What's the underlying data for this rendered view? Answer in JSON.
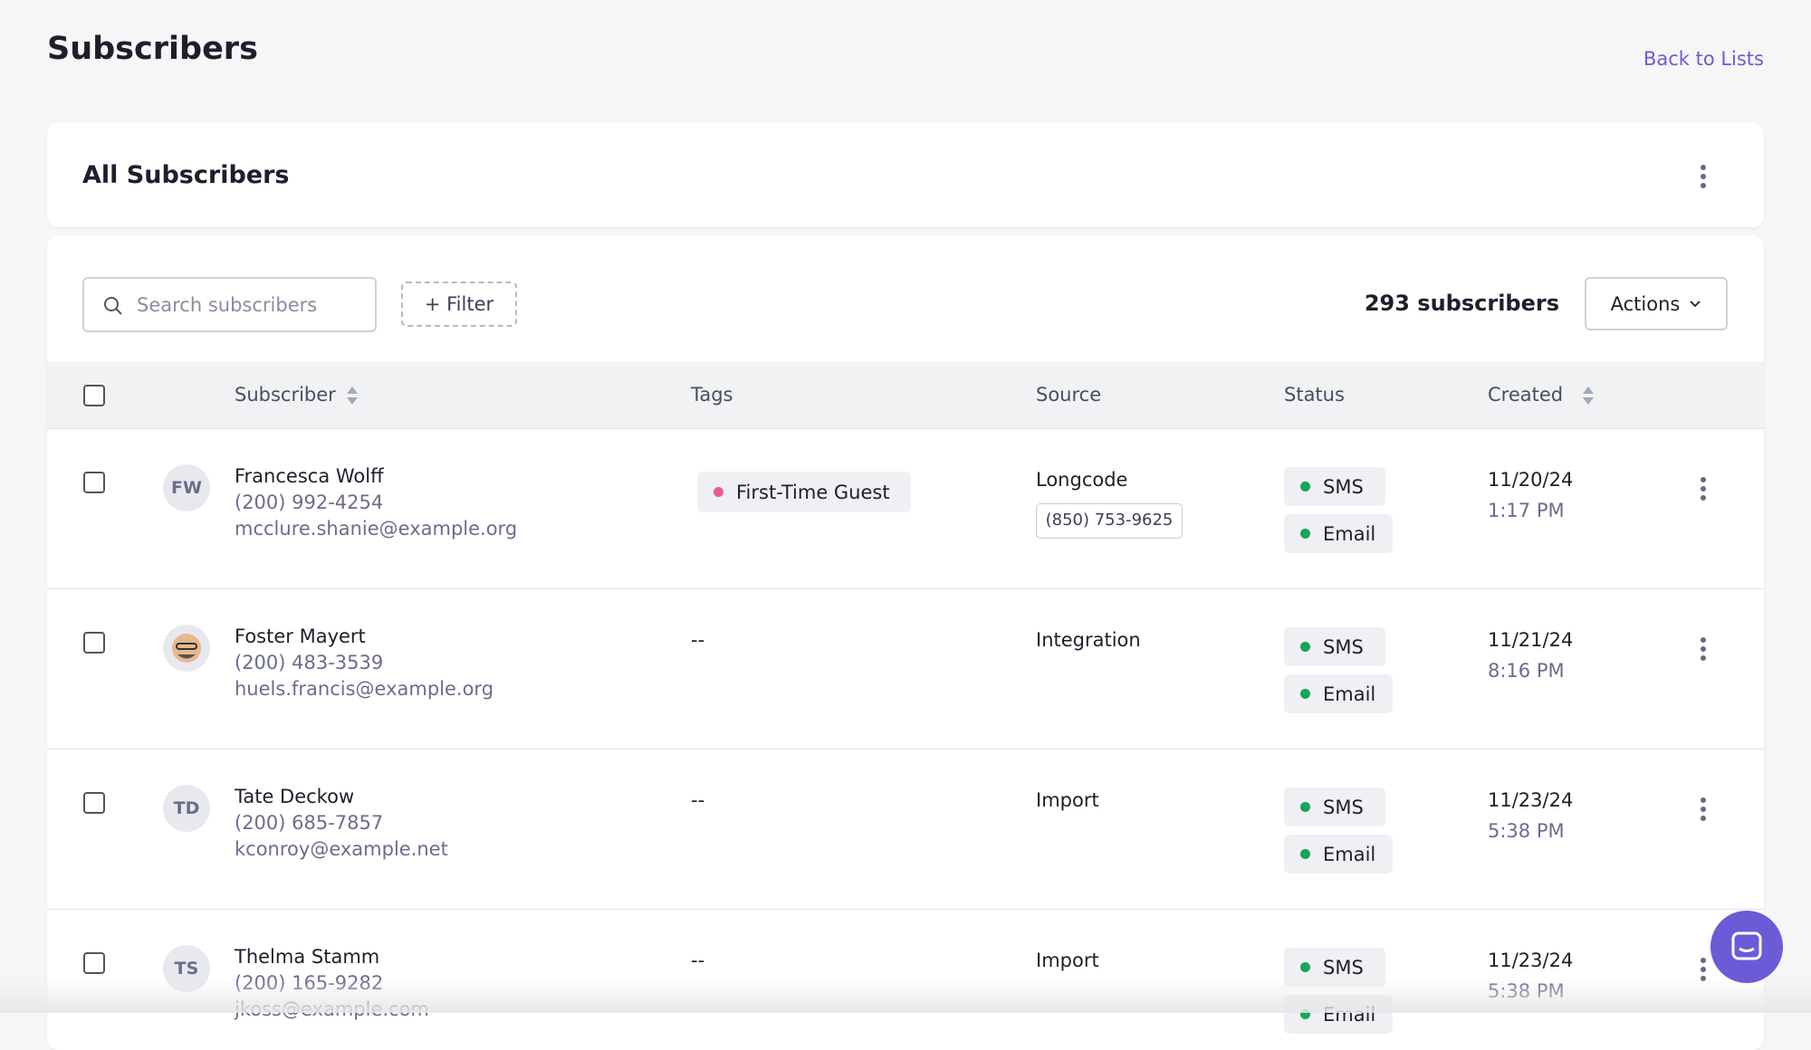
{
  "header": {
    "title": "Subscribers",
    "back_link": "Back to Lists"
  },
  "list": {
    "title": "All Subscribers"
  },
  "toolbar": {
    "search_placeholder": "Search subscribers",
    "filter": "+ Filter",
    "count": "293 subscribers",
    "actions": "Actions"
  },
  "table": {
    "columns": [
      "Subscriber",
      "Tags",
      "Source",
      "Status",
      "Created"
    ],
    "rows": [
      {
        "initials": "FW",
        "name": "Francesca Wolff",
        "phone": "(200) 992-4254",
        "email": "mcclure.shanie@example.org",
        "tag": "First-Time Guest",
        "source": "Longcode",
        "source_detail": "(850) 753-9625",
        "status": [
          "SMS",
          "Email"
        ],
        "date": "11/20/24",
        "time": "1:17 PM"
      },
      {
        "name": "Foster Mayert",
        "phone": "(200) 483-3539",
        "email": "huels.francis@example.org",
        "no_tag": "--",
        "source": "Integration",
        "status": [
          "SMS",
          "Email"
        ],
        "date": "11/21/24",
        "time": "8:16 PM"
      },
      {
        "initials": "TD",
        "name": "Tate Deckow",
        "phone": "(200) 685-7857",
        "email": "kconroy@example.net",
        "no_tag": "--",
        "source": "Import",
        "status": [
          "SMS",
          "Email"
        ],
        "date": "11/23/24",
        "time": "5:38 PM"
      },
      {
        "initials": "TS",
        "name": "Thelma Stamm",
        "phone": "(200) 165-9282",
        "email": "jkoss@example.com",
        "no_tag": "--",
        "source": "Import",
        "status": [
          "SMS",
          "Email"
        ],
        "date": "11/23/24",
        "time": "5:38 PM"
      }
    ]
  }
}
